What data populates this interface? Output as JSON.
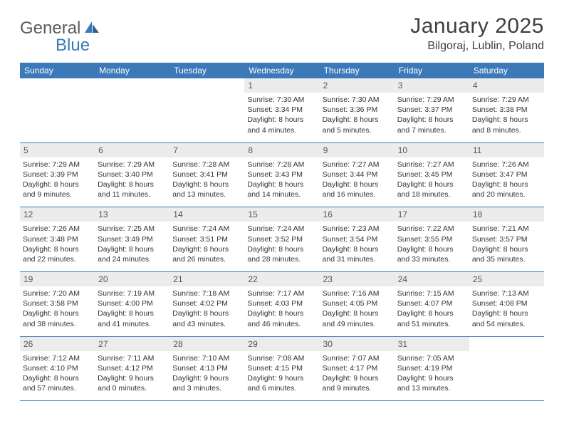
{
  "logo": {
    "part1": "General",
    "part2": "Blue"
  },
  "title": "January 2025",
  "location": "Bilgoraj, Lublin, Poland",
  "colors": {
    "header_bar": "#3b79b8",
    "cell_num_bg": "#ececec",
    "text": "#333333",
    "title_text": "#404040",
    "logo_gray": "#5a5a5a",
    "logo_blue": "#3b79b8",
    "background": "#ffffff"
  },
  "dayNames": [
    "Sunday",
    "Monday",
    "Tuesday",
    "Wednesday",
    "Thursday",
    "Friday",
    "Saturday"
  ],
  "weeks": [
    [
      {
        "empty": true
      },
      {
        "empty": true
      },
      {
        "empty": true
      },
      {
        "num": "1",
        "sunrise": "Sunrise: 7:30 AM",
        "sunset": "Sunset: 3:34 PM",
        "day1": "Daylight: 8 hours",
        "day2": "and 4 minutes."
      },
      {
        "num": "2",
        "sunrise": "Sunrise: 7:30 AM",
        "sunset": "Sunset: 3:36 PM",
        "day1": "Daylight: 8 hours",
        "day2": "and 5 minutes."
      },
      {
        "num": "3",
        "sunrise": "Sunrise: 7:29 AM",
        "sunset": "Sunset: 3:37 PM",
        "day1": "Daylight: 8 hours",
        "day2": "and 7 minutes."
      },
      {
        "num": "4",
        "sunrise": "Sunrise: 7:29 AM",
        "sunset": "Sunset: 3:38 PM",
        "day1": "Daylight: 8 hours",
        "day2": "and 8 minutes."
      }
    ],
    [
      {
        "num": "5",
        "sunrise": "Sunrise: 7:29 AM",
        "sunset": "Sunset: 3:39 PM",
        "day1": "Daylight: 8 hours",
        "day2": "and 9 minutes."
      },
      {
        "num": "6",
        "sunrise": "Sunrise: 7:29 AM",
        "sunset": "Sunset: 3:40 PM",
        "day1": "Daylight: 8 hours",
        "day2": "and 11 minutes."
      },
      {
        "num": "7",
        "sunrise": "Sunrise: 7:28 AM",
        "sunset": "Sunset: 3:41 PM",
        "day1": "Daylight: 8 hours",
        "day2": "and 13 minutes."
      },
      {
        "num": "8",
        "sunrise": "Sunrise: 7:28 AM",
        "sunset": "Sunset: 3:43 PM",
        "day1": "Daylight: 8 hours",
        "day2": "and 14 minutes."
      },
      {
        "num": "9",
        "sunrise": "Sunrise: 7:27 AM",
        "sunset": "Sunset: 3:44 PM",
        "day1": "Daylight: 8 hours",
        "day2": "and 16 minutes."
      },
      {
        "num": "10",
        "sunrise": "Sunrise: 7:27 AM",
        "sunset": "Sunset: 3:45 PM",
        "day1": "Daylight: 8 hours",
        "day2": "and 18 minutes."
      },
      {
        "num": "11",
        "sunrise": "Sunrise: 7:26 AM",
        "sunset": "Sunset: 3:47 PM",
        "day1": "Daylight: 8 hours",
        "day2": "and 20 minutes."
      }
    ],
    [
      {
        "num": "12",
        "sunrise": "Sunrise: 7:26 AM",
        "sunset": "Sunset: 3:48 PM",
        "day1": "Daylight: 8 hours",
        "day2": "and 22 minutes."
      },
      {
        "num": "13",
        "sunrise": "Sunrise: 7:25 AM",
        "sunset": "Sunset: 3:49 PM",
        "day1": "Daylight: 8 hours",
        "day2": "and 24 minutes."
      },
      {
        "num": "14",
        "sunrise": "Sunrise: 7:24 AM",
        "sunset": "Sunset: 3:51 PM",
        "day1": "Daylight: 8 hours",
        "day2": "and 26 minutes."
      },
      {
        "num": "15",
        "sunrise": "Sunrise: 7:24 AM",
        "sunset": "Sunset: 3:52 PM",
        "day1": "Daylight: 8 hours",
        "day2": "and 28 minutes."
      },
      {
        "num": "16",
        "sunrise": "Sunrise: 7:23 AM",
        "sunset": "Sunset: 3:54 PM",
        "day1": "Daylight: 8 hours",
        "day2": "and 31 minutes."
      },
      {
        "num": "17",
        "sunrise": "Sunrise: 7:22 AM",
        "sunset": "Sunset: 3:55 PM",
        "day1": "Daylight: 8 hours",
        "day2": "and 33 minutes."
      },
      {
        "num": "18",
        "sunrise": "Sunrise: 7:21 AM",
        "sunset": "Sunset: 3:57 PM",
        "day1": "Daylight: 8 hours",
        "day2": "and 35 minutes."
      }
    ],
    [
      {
        "num": "19",
        "sunrise": "Sunrise: 7:20 AM",
        "sunset": "Sunset: 3:58 PM",
        "day1": "Daylight: 8 hours",
        "day2": "and 38 minutes."
      },
      {
        "num": "20",
        "sunrise": "Sunrise: 7:19 AM",
        "sunset": "Sunset: 4:00 PM",
        "day1": "Daylight: 8 hours",
        "day2": "and 41 minutes."
      },
      {
        "num": "21",
        "sunrise": "Sunrise: 7:18 AM",
        "sunset": "Sunset: 4:02 PM",
        "day1": "Daylight: 8 hours",
        "day2": "and 43 minutes."
      },
      {
        "num": "22",
        "sunrise": "Sunrise: 7:17 AM",
        "sunset": "Sunset: 4:03 PM",
        "day1": "Daylight: 8 hours",
        "day2": "and 46 minutes."
      },
      {
        "num": "23",
        "sunrise": "Sunrise: 7:16 AM",
        "sunset": "Sunset: 4:05 PM",
        "day1": "Daylight: 8 hours",
        "day2": "and 49 minutes."
      },
      {
        "num": "24",
        "sunrise": "Sunrise: 7:15 AM",
        "sunset": "Sunset: 4:07 PM",
        "day1": "Daylight: 8 hours",
        "day2": "and 51 minutes."
      },
      {
        "num": "25",
        "sunrise": "Sunrise: 7:13 AM",
        "sunset": "Sunset: 4:08 PM",
        "day1": "Daylight: 8 hours",
        "day2": "and 54 minutes."
      }
    ],
    [
      {
        "num": "26",
        "sunrise": "Sunrise: 7:12 AM",
        "sunset": "Sunset: 4:10 PM",
        "day1": "Daylight: 8 hours",
        "day2": "and 57 minutes."
      },
      {
        "num": "27",
        "sunrise": "Sunrise: 7:11 AM",
        "sunset": "Sunset: 4:12 PM",
        "day1": "Daylight: 9 hours",
        "day2": "and 0 minutes."
      },
      {
        "num": "28",
        "sunrise": "Sunrise: 7:10 AM",
        "sunset": "Sunset: 4:13 PM",
        "day1": "Daylight: 9 hours",
        "day2": "and 3 minutes."
      },
      {
        "num": "29",
        "sunrise": "Sunrise: 7:08 AM",
        "sunset": "Sunset: 4:15 PM",
        "day1": "Daylight: 9 hours",
        "day2": "and 6 minutes."
      },
      {
        "num": "30",
        "sunrise": "Sunrise: 7:07 AM",
        "sunset": "Sunset: 4:17 PM",
        "day1": "Daylight: 9 hours",
        "day2": "and 9 minutes."
      },
      {
        "num": "31",
        "sunrise": "Sunrise: 7:05 AM",
        "sunset": "Sunset: 4:19 PM",
        "day1": "Daylight: 9 hours",
        "day2": "and 13 minutes."
      },
      {
        "empty": true
      }
    ]
  ]
}
